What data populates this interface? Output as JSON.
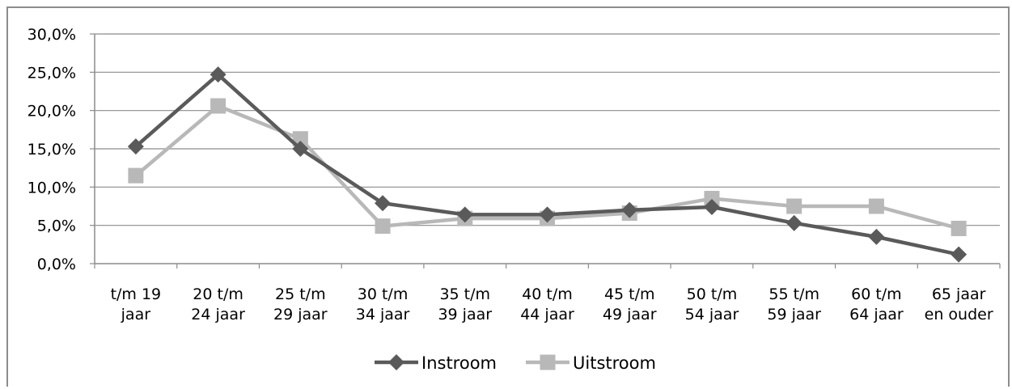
{
  "chart_data": {
    "type": "line",
    "title": "",
    "xlabel": "",
    "ylabel": "",
    "categories": [
      [
        "t/m 19",
        "jaar"
      ],
      [
        "20 t/m",
        "24 jaar"
      ],
      [
        "25 t/m",
        "29 jaar"
      ],
      [
        "30 t/m",
        "34 jaar"
      ],
      [
        "35 t/m",
        "39 jaar"
      ],
      [
        "40 t/m",
        "44 jaar"
      ],
      [
        "45 t/m",
        "49 jaar"
      ],
      [
        "50 t/m",
        "54 jaar"
      ],
      [
        "55 t/m",
        "59 jaar"
      ],
      [
        "60 t/m",
        "64 jaar"
      ],
      [
        "65 jaar",
        "en ouder"
      ]
    ],
    "y_ticks": [
      "0,0%",
      "5,0%",
      "10,0%",
      "15,0%",
      "20,0%",
      "25,0%",
      "30,0%"
    ],
    "ylim": [
      0,
      30
    ],
    "grid": true,
    "legend_position": "bottom",
    "series": [
      {
        "name": "Instroom",
        "color": "#5a5a5a",
        "marker": "diamond",
        "values": [
          15.3,
          24.7,
          15.0,
          7.9,
          6.4,
          6.4,
          7.0,
          7.4,
          5.3,
          3.5,
          1.2
        ]
      },
      {
        "name": "Uitstroom",
        "color": "#b8b8b8",
        "marker": "square",
        "values": [
          11.5,
          20.6,
          16.3,
          4.9,
          5.9,
          5.9,
          6.6,
          8.5,
          7.5,
          7.5,
          4.6
        ]
      }
    ]
  }
}
